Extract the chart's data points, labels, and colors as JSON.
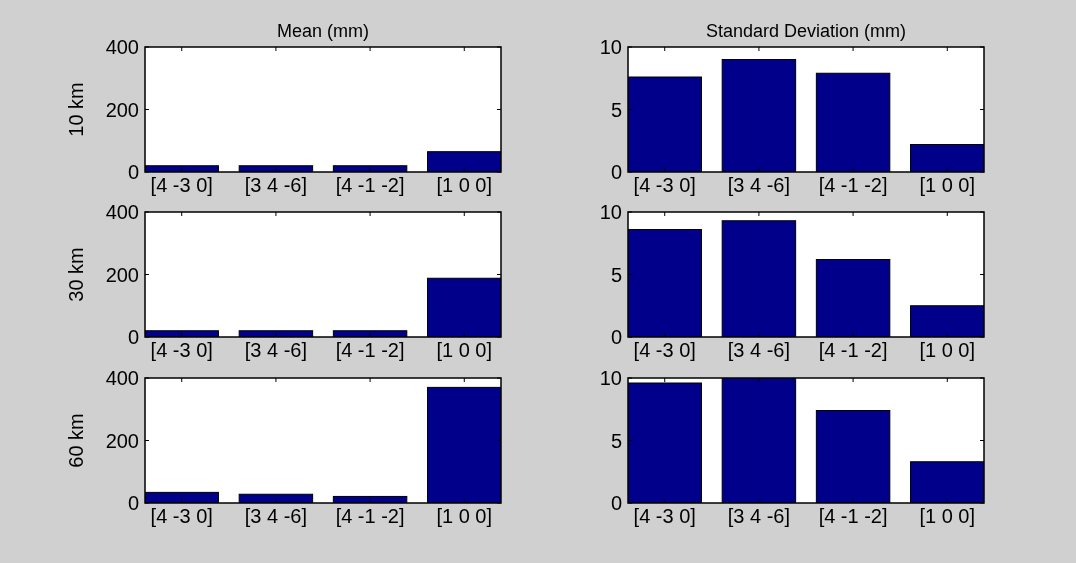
{
  "chart_data": [
    {
      "type": "bar",
      "title": "Mean (mm)",
      "ylabel": "10 km",
      "categories": [
        "[4 -3 0]",
        "[3 4 -6]",
        "[4 -1 -2]",
        "[1 0 0]"
      ],
      "values": [
        20,
        20,
        20,
        65
      ],
      "color": "#00008b",
      "ylim": [
        0,
        400
      ],
      "yticks": [
        0,
        200,
        400
      ],
      "grid": false
    },
    {
      "type": "bar",
      "title": "Standard Deviation (mm)",
      "categories": [
        "[4 -3 0]",
        "[3 4 -6]",
        "[4 -1 -2]",
        "[1 0 0]"
      ],
      "values": [
        7.6,
        9.0,
        7.9,
        2.2
      ],
      "color": "#00008b",
      "ylim": [
        0,
        10
      ],
      "yticks": [
        0,
        5,
        10
      ],
      "grid": false
    },
    {
      "type": "bar",
      "ylabel": "30 km",
      "categories": [
        "[4 -3 0]",
        "[3 4 -6]",
        "[4 -1 -2]",
        "[1 0 0]"
      ],
      "values": [
        20,
        20,
        20,
        188
      ],
      "color": "#00008b",
      "ylim": [
        0,
        400
      ],
      "yticks": [
        0,
        200,
        400
      ],
      "grid": false
    },
    {
      "type": "bar",
      "categories": [
        "[4 -3 0]",
        "[3 4 -6]",
        "[4 -1 -2]",
        "[1 0 0]"
      ],
      "values": [
        8.6,
        9.3,
        6.2,
        2.5
      ],
      "color": "#00008b",
      "ylim": [
        0,
        10
      ],
      "yticks": [
        0,
        5,
        10
      ],
      "grid": false
    },
    {
      "type": "bar",
      "ylabel": "60 km",
      "categories": [
        "[4 -3 0]",
        "[3 4 -6]",
        "[4 -1 -2]",
        "[1 0 0]"
      ],
      "values": [
        34,
        28,
        21,
        370
      ],
      "color": "#00008b",
      "ylim": [
        0,
        400
      ],
      "yticks": [
        0,
        200,
        400
      ],
      "grid": false
    },
    {
      "type": "bar",
      "categories": [
        "[4 -3 0]",
        "[3 4 -6]",
        "[4 -1 -2]",
        "[1 0 0]"
      ],
      "values": [
        9.6,
        10,
        7.4,
        3.3
      ],
      "color": "#00008b",
      "ylim": [
        0,
        10
      ],
      "yticks": [
        0,
        5,
        10
      ],
      "grid": false
    }
  ]
}
